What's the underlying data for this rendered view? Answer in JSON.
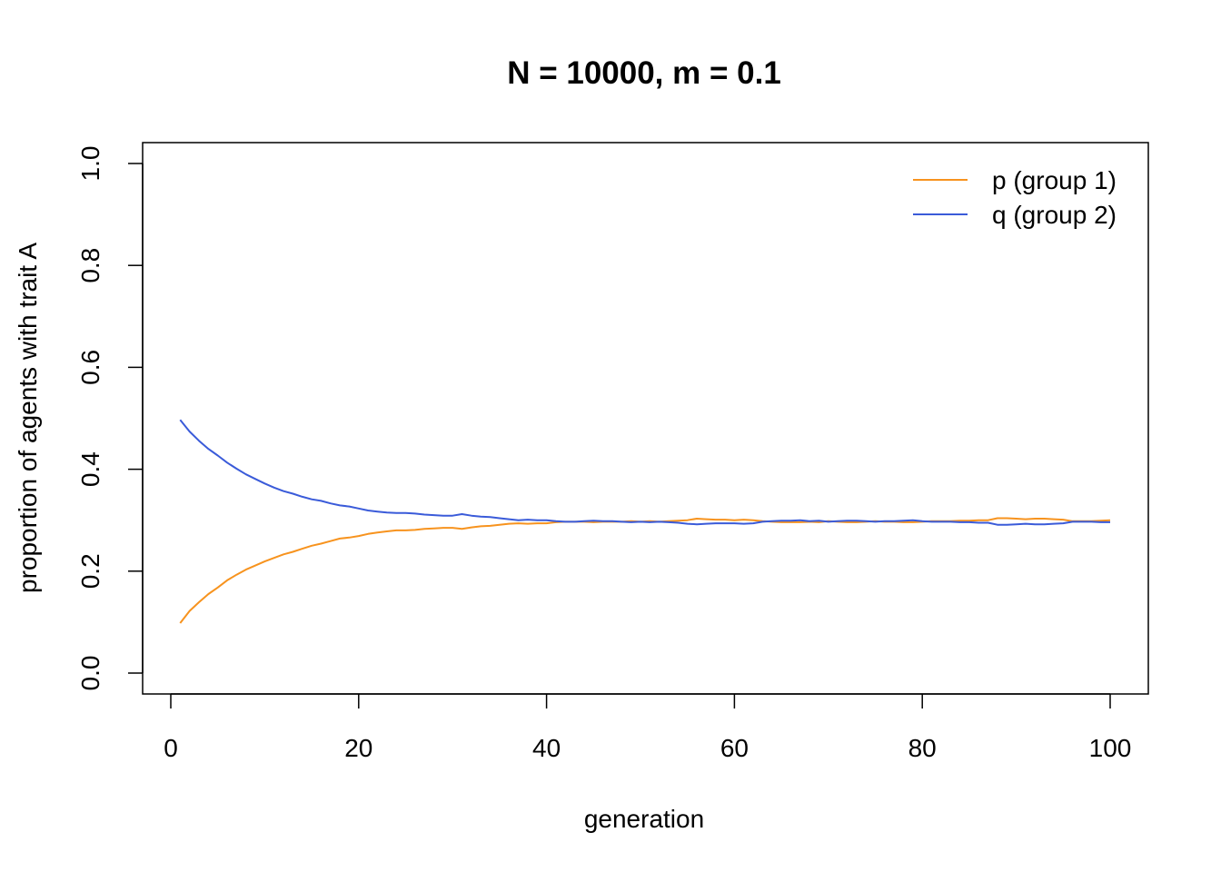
{
  "chart_data": {
    "type": "line",
    "title": "N = 10000, m = 0.1",
    "xlabel": "generation",
    "ylabel": "proportion of agents with trait A",
    "xlim": [
      1,
      100
    ],
    "ylim": [
      0,
      1
    ],
    "x_ticks": [
      0,
      20,
      40,
      60,
      80,
      100
    ],
    "x_tick_labels": [
      "0",
      "20",
      "40",
      "60",
      "80",
      "100"
    ],
    "y_ticks": [
      0.0,
      0.2,
      0.4,
      0.6,
      0.8,
      1.0
    ],
    "y_tick_labels": [
      "0.0",
      "0.2",
      "0.4",
      "0.6",
      "0.8",
      "1.0"
    ],
    "legend_position": "top-right",
    "grid": false,
    "x": [
      1,
      2,
      3,
      4,
      5,
      6,
      7,
      8,
      9,
      10,
      11,
      12,
      13,
      14,
      15,
      16,
      17,
      18,
      19,
      20,
      21,
      22,
      23,
      24,
      25,
      26,
      27,
      28,
      29,
      30,
      31,
      32,
      33,
      34,
      35,
      36,
      37,
      38,
      39,
      40,
      41,
      42,
      43,
      44,
      45,
      46,
      47,
      48,
      49,
      50,
      51,
      52,
      53,
      54,
      55,
      56,
      57,
      58,
      59,
      60,
      61,
      62,
      63,
      64,
      65,
      66,
      67,
      68,
      69,
      70,
      71,
      72,
      73,
      74,
      75,
      76,
      77,
      78,
      79,
      80,
      81,
      82,
      83,
      84,
      85,
      86,
      87,
      88,
      89,
      90,
      91,
      92,
      93,
      94,
      95,
      96,
      97,
      98,
      99,
      100
    ],
    "series": [
      {
        "name": "p (group 1)",
        "color": "#f7931e",
        "values": [
          0.098,
          0.122,
          0.139,
          0.155,
          0.168,
          0.182,
          0.193,
          0.203,
          0.211,
          0.219,
          0.226,
          0.233,
          0.238,
          0.244,
          0.25,
          0.254,
          0.259,
          0.264,
          0.266,
          0.269,
          0.273,
          0.276,
          0.278,
          0.28,
          0.28,
          0.281,
          0.283,
          0.284,
          0.285,
          0.285,
          0.283,
          0.286,
          0.288,
          0.289,
          0.291,
          0.293,
          0.294,
          0.293,
          0.294,
          0.294,
          0.296,
          0.297,
          0.297,
          0.297,
          0.296,
          0.297,
          0.297,
          0.297,
          0.298,
          0.297,
          0.298,
          0.297,
          0.298,
          0.299,
          0.3,
          0.303,
          0.302,
          0.301,
          0.301,
          0.3,
          0.301,
          0.3,
          0.298,
          0.297,
          0.296,
          0.296,
          0.296,
          0.297,
          0.296,
          0.298,
          0.297,
          0.296,
          0.296,
          0.297,
          0.298,
          0.297,
          0.297,
          0.296,
          0.296,
          0.297,
          0.298,
          0.298,
          0.298,
          0.299,
          0.299,
          0.3,
          0.3,
          0.304,
          0.304,
          0.303,
          0.302,
          0.303,
          0.303,
          0.302,
          0.301,
          0.298,
          0.298,
          0.298,
          0.299,
          0.3
        ]
      },
      {
        "name": "q (group 2)",
        "color": "#3a5bd9",
        "values": [
          0.497,
          0.474,
          0.456,
          0.44,
          0.427,
          0.413,
          0.401,
          0.39,
          0.381,
          0.372,
          0.364,
          0.357,
          0.352,
          0.346,
          0.341,
          0.338,
          0.333,
          0.329,
          0.327,
          0.323,
          0.319,
          0.317,
          0.315,
          0.314,
          0.314,
          0.313,
          0.311,
          0.31,
          0.309,
          0.309,
          0.312,
          0.309,
          0.307,
          0.306,
          0.304,
          0.302,
          0.3,
          0.301,
          0.3,
          0.3,
          0.298,
          0.297,
          0.297,
          0.298,
          0.299,
          0.298,
          0.298,
          0.297,
          0.296,
          0.297,
          0.296,
          0.297,
          0.296,
          0.295,
          0.293,
          0.292,
          0.293,
          0.294,
          0.294,
          0.294,
          0.293,
          0.294,
          0.297,
          0.298,
          0.299,
          0.299,
          0.3,
          0.298,
          0.299,
          0.297,
          0.298,
          0.299,
          0.299,
          0.298,
          0.297,
          0.298,
          0.298,
          0.299,
          0.3,
          0.298,
          0.297,
          0.297,
          0.297,
          0.296,
          0.296,
          0.295,
          0.295,
          0.291,
          0.291,
          0.292,
          0.293,
          0.292,
          0.292,
          0.293,
          0.294,
          0.297,
          0.297,
          0.297,
          0.296,
          0.296
        ]
      }
    ]
  }
}
